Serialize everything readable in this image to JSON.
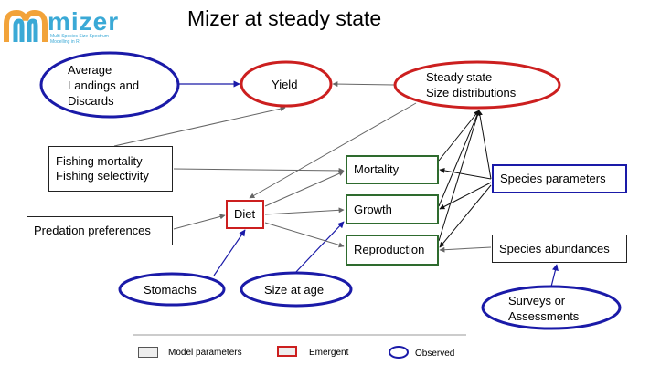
{
  "title": "Mizer at steady state",
  "logo": {
    "word": "mizer",
    "tagline": "Multi-Species Size Spectrum Modelling in R"
  },
  "nodes": {
    "average_landings": "Average\nLandings and\nDiscards",
    "yield": "Yield",
    "steady_state": "Steady state\nSize distributions",
    "fishing": "Fishing mortality\nFishing selectivity",
    "predation": "Predation preferences",
    "diet": "Diet",
    "mortality": "Mortality",
    "growth": "Growth",
    "reproduction": "Reproduction",
    "species_parameters": "Species parameters",
    "species_abundances": "Species abundances",
    "stomachs": "Stomachs",
    "size_at_age": "Size at age",
    "surveys": "Surveys or\nAssessments"
  },
  "legend": {
    "model_parameters": "Model parameters",
    "emergent": "Emergent",
    "observed": "Observed"
  },
  "colors": {
    "observed": "#1a1aa8",
    "emergent": "#cc1f1f",
    "process": "#2e6b2e",
    "parameter": "#222222",
    "logo": "#3aa9d6"
  }
}
